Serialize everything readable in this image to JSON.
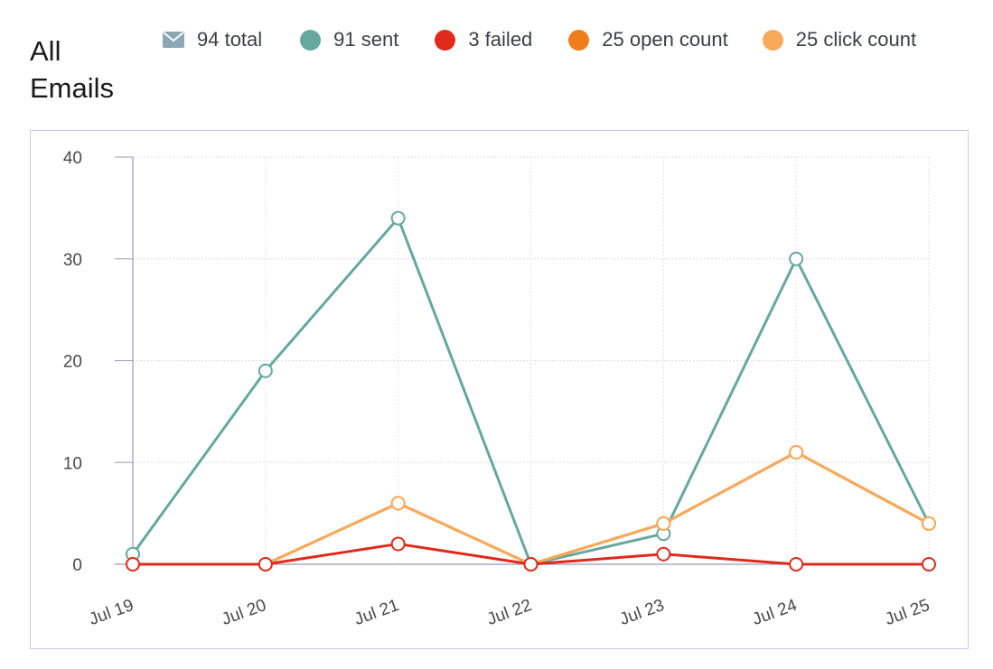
{
  "title": "All Emails",
  "legend": [
    {
      "label": "94 total",
      "icon": "mail-icon",
      "color": "#8aa7b3"
    },
    {
      "label": "91 sent",
      "color": "#66a89e"
    },
    {
      "label": "3 failed",
      "color": "#e02a1c"
    },
    {
      "label": "25 open count",
      "color": "#ef7d1c"
    },
    {
      "label": "25 click count",
      "color": "#f9a95a"
    }
  ],
  "chart_data": {
    "type": "line",
    "categories": [
      "Jul 19",
      "Jul 20",
      "Jul 21",
      "Jul 22",
      "Jul 23",
      "Jul 24",
      "Jul 25"
    ],
    "ylim": [
      0,
      40
    ],
    "yticks": [
      0,
      10,
      20,
      30,
      40
    ],
    "grid": true,
    "series": [
      {
        "name": "91 sent",
        "color": "#66a89e",
        "values": [
          1,
          19,
          34,
          0,
          3,
          30,
          4
        ]
      },
      {
        "name": "25 open count",
        "color": "#ef7d1c",
        "values": [
          0,
          0,
          6,
          0,
          4,
          11,
          4
        ]
      },
      {
        "name": "25 click count",
        "color": "#f9a95a",
        "values": [
          0,
          0,
          6,
          0,
          4,
          11,
          4
        ]
      },
      {
        "name": "3 failed",
        "color": "#e02a1c",
        "values": [
          0,
          0,
          2,
          0,
          1,
          0,
          0
        ]
      }
    ]
  }
}
